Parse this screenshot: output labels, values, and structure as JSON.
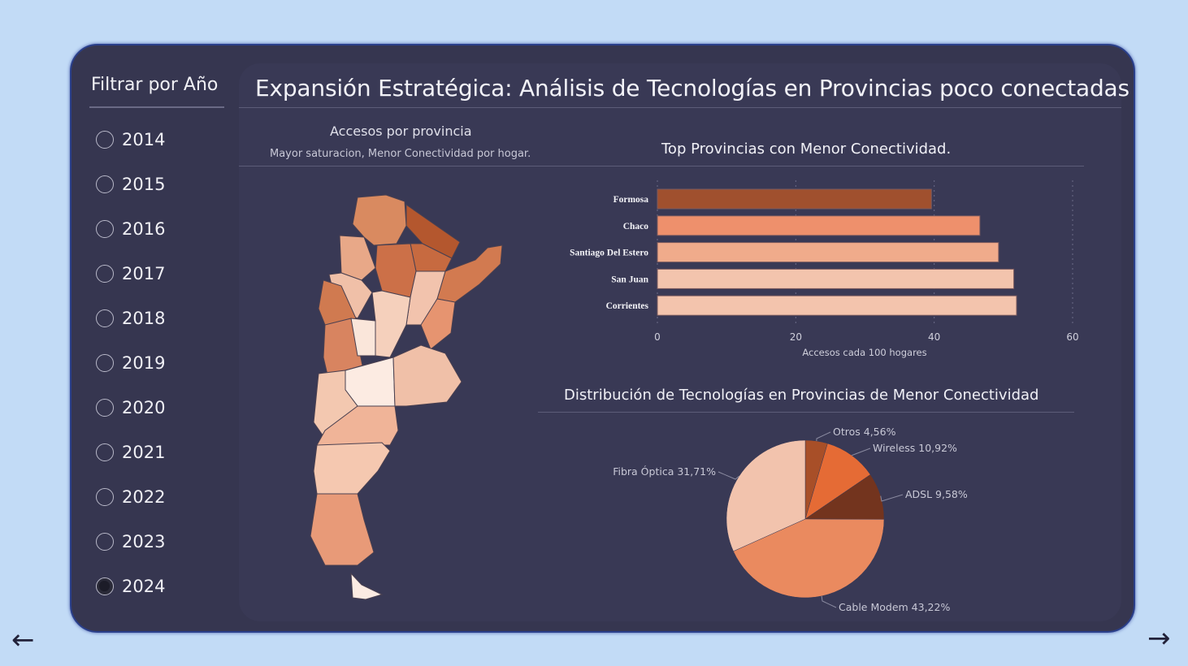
{
  "sidebar": {
    "title": "Filtrar por Año",
    "years": [
      "2014",
      "2015",
      "2016",
      "2017",
      "2018",
      "2019",
      "2020",
      "2021",
      "2022",
      "2023",
      "2024"
    ],
    "selected": "2024"
  },
  "header": {
    "title": "Expansión Estratégica: Análisis de Tecnologías en Provincias poco conectadas"
  },
  "map": {
    "title": "Accesos por provincia",
    "subtitle": "Mayor saturacion, Menor Conectividad por hogar."
  },
  "colors": {
    "background": "#c2dbf6",
    "panel": "#363650",
    "card": "#393955"
  },
  "chart_data": [
    {
      "type": "bar",
      "title": "Top Provincias con Menor Conectividad.",
      "categories": [
        "Formosa",
        "Chaco",
        "Santiago Del Estero",
        "San Juan",
        "Corrientes"
      ],
      "values": [
        39.6,
        46.6,
        49.3,
        51.5,
        51.9
      ],
      "colors": [
        "#a0502e",
        "#ee906c",
        "#f0ab8b",
        "#f3c4ad",
        "#f3c4ad"
      ],
      "xlabel": "Accesos cada 100 hogares",
      "xlim": [
        0,
        60
      ],
      "ticks": [
        "0",
        "20",
        "40",
        "60"
      ],
      "orientation": "horizontal"
    },
    {
      "type": "pie",
      "title": "Distribución de Tecnologías en Provincias de Menor Conectividad",
      "slices": [
        {
          "label": "Otros",
          "value": 4.56,
          "text": "Otros 4,56%",
          "color": "#a84f28"
        },
        {
          "label": "Wireless",
          "value": 10.92,
          "text": "Wireless 10,92%",
          "color": "#e56b35"
        },
        {
          "label": "ADSL",
          "value": 9.58,
          "text": "ADSL 9,58%",
          "color": "#73341e"
        },
        {
          "label": "Cable Modem",
          "value": 43.22,
          "text": "Cable Modem 43,22%",
          "color": "#ea8a5f"
        },
        {
          "label": "Fibra Óptica",
          "value": 31.71,
          "text": "Fibra Óptica 31,71%",
          "color": "#f2c3ad"
        }
      ]
    }
  ],
  "nav": {
    "back": "←",
    "forward": "→"
  }
}
